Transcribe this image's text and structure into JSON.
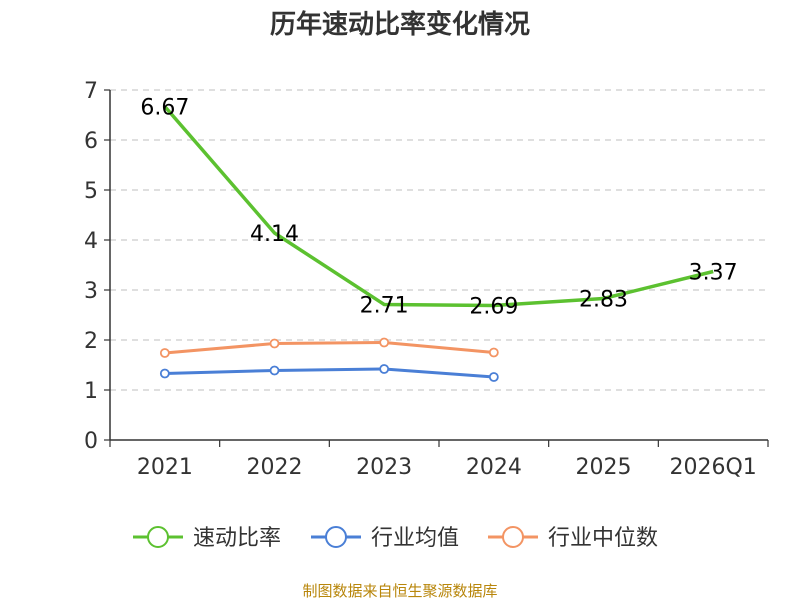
{
  "chart_data": {
    "type": "line",
    "title": "历年速动比率变化情况",
    "categories": [
      "2021",
      "2022",
      "2023",
      "2024",
      "2025",
      "2026Q1"
    ],
    "ylim": [
      0,
      7
    ],
    "yticks": [
      0,
      1,
      2,
      3,
      4,
      5,
      6,
      7
    ],
    "grid": true,
    "legend_position": "bottom",
    "series": [
      {
        "name": "速动比率",
        "color": "#5cc130",
        "values": [
          6.67,
          4.14,
          2.71,
          2.69,
          2.83,
          3.37
        ],
        "labels": [
          "6.67",
          "4.14",
          "2.71",
          "2.69",
          "2.83",
          "3.37"
        ],
        "markers": false
      },
      {
        "name": "行业均值",
        "color": "#4a7fd6",
        "values": [
          1.33,
          1.39,
          1.42,
          1.26,
          null,
          null
        ],
        "markers": true
      },
      {
        "name": "行业中位数",
        "color": "#f39463",
        "values": [
          1.74,
          1.93,
          1.95,
          1.75,
          null,
          null
        ],
        "markers": true
      }
    ],
    "source": "制图数据来自恒生聚源数据库"
  }
}
